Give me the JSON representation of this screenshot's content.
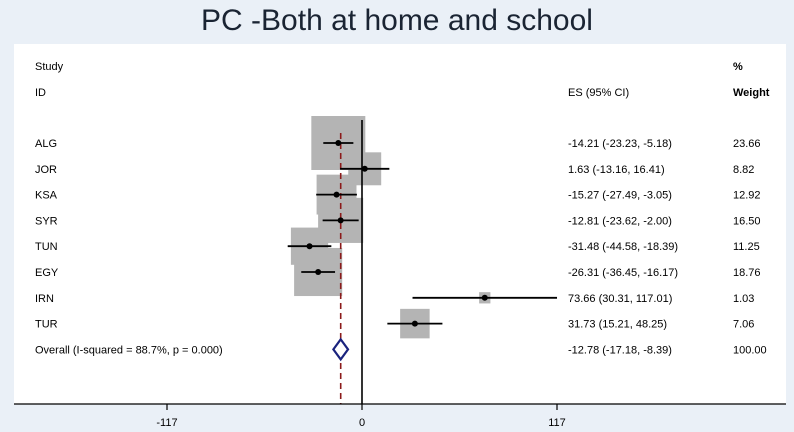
{
  "title": "PC -Both at home and school",
  "chart_data": {
    "type": "forest",
    "title": "PC -Both at home and school",
    "headers": {
      "study_line1": "Study",
      "study_line2": "ID",
      "es_header": "ES (95% CI)",
      "weight_line1": "%",
      "weight_line2": "Weight"
    },
    "studies": [
      {
        "id": "ALG",
        "es": -14.21,
        "lo": -23.23,
        "hi": -5.18,
        "weight": 23.66,
        "es_text": "-14.21 (-23.23, -5.18)",
        "weight_text": "23.66"
      },
      {
        "id": "JOR",
        "es": 1.63,
        "lo": -13.16,
        "hi": 16.41,
        "weight": 8.82,
        "es_text": "1.63 (-13.16, 16.41)",
        "weight_text": "8.82"
      },
      {
        "id": "KSA",
        "es": -15.27,
        "lo": -27.49,
        "hi": -3.05,
        "weight": 12.92,
        "es_text": "-15.27 (-27.49, -3.05)",
        "weight_text": "12.92"
      },
      {
        "id": "SYR",
        "es": -12.81,
        "lo": -23.62,
        "hi": -2.0,
        "weight": 16.5,
        "es_text": "-12.81 (-23.62, -2.00)",
        "weight_text": "16.50"
      },
      {
        "id": "TUN",
        "es": -31.48,
        "lo": -44.58,
        "hi": -18.39,
        "weight": 11.25,
        "es_text": "-31.48 (-44.58, -18.39)",
        "weight_text": "11.25"
      },
      {
        "id": "EGY",
        "es": -26.31,
        "lo": -36.45,
        "hi": -16.17,
        "weight": 18.76,
        "es_text": "-26.31 (-36.45, -16.17)",
        "weight_text": "18.76"
      },
      {
        "id": "IRN",
        "es": 73.66,
        "lo": 30.31,
        "hi": 117.01,
        "weight": 1.03,
        "es_text": "73.66 (30.31, 117.01)",
        "weight_text": "1.03"
      },
      {
        "id": "TUR",
        "es": 31.73,
        "lo": 15.21,
        "hi": 48.25,
        "weight": 7.06,
        "es_text": "31.73 (15.21, 48.25)",
        "weight_text": "7.06"
      }
    ],
    "overall": {
      "label": "Overall  (I-squared = 88.7%, p = 0.000)",
      "es": -12.78,
      "lo": -17.18,
      "hi": -8.39,
      "es_text": "-12.78 (-17.18, -8.39)",
      "weight_text": "100.00"
    },
    "x_ticks": [
      -117,
      0,
      117
    ],
    "x_tick_labels": [
      "-117",
      "0",
      "117"
    ],
    "xlim": [
      -117,
      117
    ],
    "null_line": 0,
    "colors": {
      "background": "#eaf0f7",
      "panel": "#ffffff",
      "box": "#b4b4b4",
      "line": "#000000",
      "diamond": "#1a237e",
      "overall_line": "#8b1a1a"
    }
  }
}
